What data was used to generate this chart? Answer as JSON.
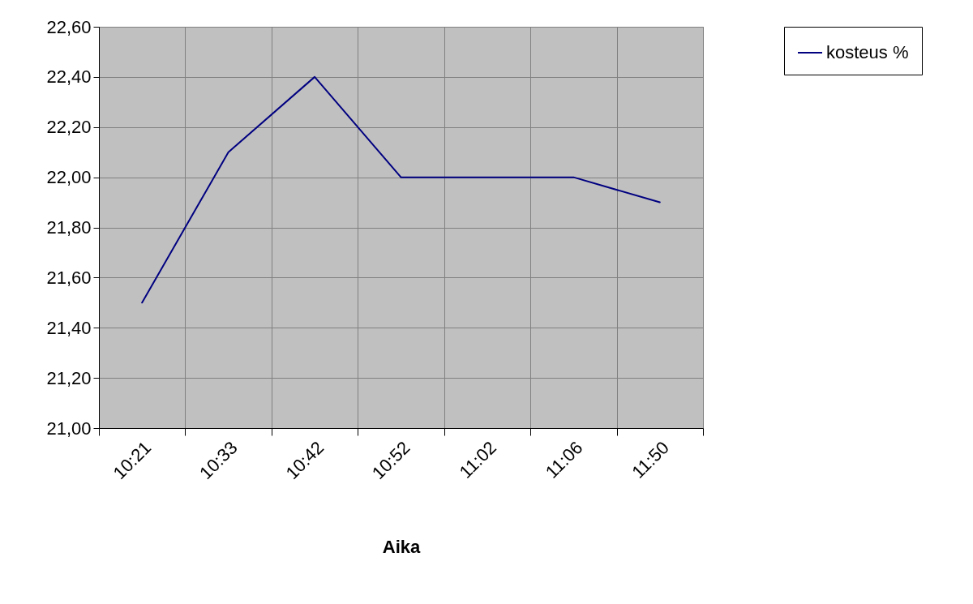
{
  "chart_data": {
    "type": "line",
    "xlabel": "Aika",
    "categories": [
      "10:21",
      "10:33",
      "10:42",
      "10:52",
      "11:02",
      "11:06",
      "11:50"
    ],
    "series": [
      {
        "name": "kosteus %",
        "color": "#000080",
        "values": [
          21.5,
          22.1,
          22.4,
          22.0,
          22.0,
          22.0,
          21.9
        ]
      }
    ],
    "ylim": [
      21,
      22.6
    ],
    "yticks": [
      {
        "value": 21,
        "label": "21,00"
      },
      {
        "value": 21.2,
        "label": "21,20"
      },
      {
        "value": 21.4,
        "label": "21,40"
      },
      {
        "value": 21.6,
        "label": "21,60"
      },
      {
        "value": 21.8,
        "label": "21,80"
      },
      {
        "value": 22,
        "label": "22,00"
      },
      {
        "value": 22.2,
        "label": "22,20"
      },
      {
        "value": 22.4,
        "label": "22,40"
      },
      {
        "value": 22.6,
        "label": "22,60"
      }
    ],
    "grid": true,
    "legend": "right"
  }
}
